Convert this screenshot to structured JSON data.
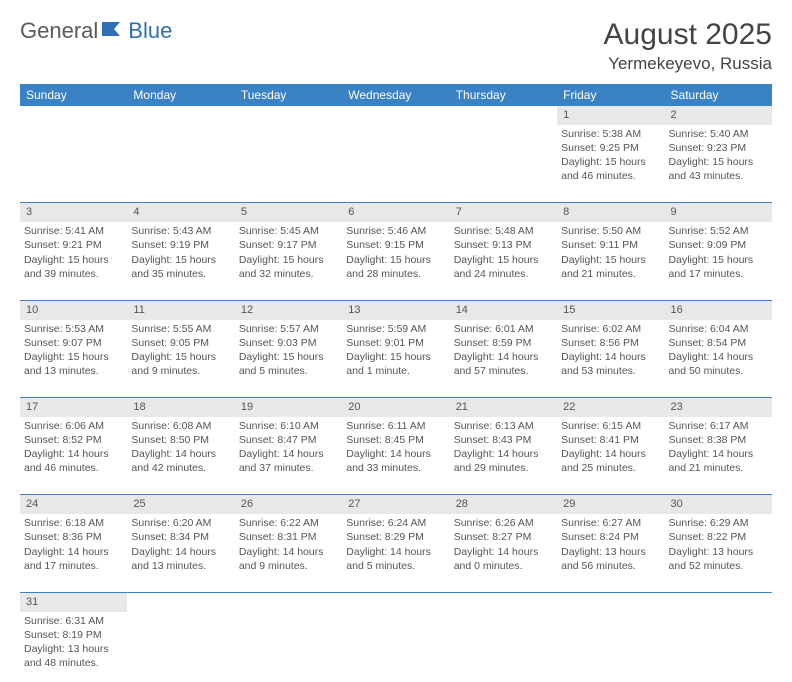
{
  "logo": {
    "text1": "General",
    "text2": "Blue"
  },
  "title": "August 2025",
  "location": "Yermekeyevo, Russia",
  "day_headers": [
    "Sunday",
    "Monday",
    "Tuesday",
    "Wednesday",
    "Thursday",
    "Friday",
    "Saturday"
  ],
  "colors": {
    "header_bg": "#3b82c4",
    "header_text": "#ffffff",
    "daynum_bg": "#e8e8e8",
    "border": "#3b82c4",
    "logo_gray": "#5a5a5a",
    "logo_blue": "#2f6fb3"
  },
  "weeks": [
    [
      null,
      null,
      null,
      null,
      null,
      {
        "n": "1",
        "sr": "Sunrise: 5:38 AM",
        "ss": "Sunset: 9:25 PM",
        "dl": "Daylight: 15 hours and 46 minutes."
      },
      {
        "n": "2",
        "sr": "Sunrise: 5:40 AM",
        "ss": "Sunset: 9:23 PM",
        "dl": "Daylight: 15 hours and 43 minutes."
      }
    ],
    [
      {
        "n": "3",
        "sr": "Sunrise: 5:41 AM",
        "ss": "Sunset: 9:21 PM",
        "dl": "Daylight: 15 hours and 39 minutes."
      },
      {
        "n": "4",
        "sr": "Sunrise: 5:43 AM",
        "ss": "Sunset: 9:19 PM",
        "dl": "Daylight: 15 hours and 35 minutes."
      },
      {
        "n": "5",
        "sr": "Sunrise: 5:45 AM",
        "ss": "Sunset: 9:17 PM",
        "dl": "Daylight: 15 hours and 32 minutes."
      },
      {
        "n": "6",
        "sr": "Sunrise: 5:46 AM",
        "ss": "Sunset: 9:15 PM",
        "dl": "Daylight: 15 hours and 28 minutes."
      },
      {
        "n": "7",
        "sr": "Sunrise: 5:48 AM",
        "ss": "Sunset: 9:13 PM",
        "dl": "Daylight: 15 hours and 24 minutes."
      },
      {
        "n": "8",
        "sr": "Sunrise: 5:50 AM",
        "ss": "Sunset: 9:11 PM",
        "dl": "Daylight: 15 hours and 21 minutes."
      },
      {
        "n": "9",
        "sr": "Sunrise: 5:52 AM",
        "ss": "Sunset: 9:09 PM",
        "dl": "Daylight: 15 hours and 17 minutes."
      }
    ],
    [
      {
        "n": "10",
        "sr": "Sunrise: 5:53 AM",
        "ss": "Sunset: 9:07 PM",
        "dl": "Daylight: 15 hours and 13 minutes."
      },
      {
        "n": "11",
        "sr": "Sunrise: 5:55 AM",
        "ss": "Sunset: 9:05 PM",
        "dl": "Daylight: 15 hours and 9 minutes."
      },
      {
        "n": "12",
        "sr": "Sunrise: 5:57 AM",
        "ss": "Sunset: 9:03 PM",
        "dl": "Daylight: 15 hours and 5 minutes."
      },
      {
        "n": "13",
        "sr": "Sunrise: 5:59 AM",
        "ss": "Sunset: 9:01 PM",
        "dl": "Daylight: 15 hours and 1 minute."
      },
      {
        "n": "14",
        "sr": "Sunrise: 6:01 AM",
        "ss": "Sunset: 8:59 PM",
        "dl": "Daylight: 14 hours and 57 minutes."
      },
      {
        "n": "15",
        "sr": "Sunrise: 6:02 AM",
        "ss": "Sunset: 8:56 PM",
        "dl": "Daylight: 14 hours and 53 minutes."
      },
      {
        "n": "16",
        "sr": "Sunrise: 6:04 AM",
        "ss": "Sunset: 8:54 PM",
        "dl": "Daylight: 14 hours and 50 minutes."
      }
    ],
    [
      {
        "n": "17",
        "sr": "Sunrise: 6:06 AM",
        "ss": "Sunset: 8:52 PM",
        "dl": "Daylight: 14 hours and 46 minutes."
      },
      {
        "n": "18",
        "sr": "Sunrise: 6:08 AM",
        "ss": "Sunset: 8:50 PM",
        "dl": "Daylight: 14 hours and 42 minutes."
      },
      {
        "n": "19",
        "sr": "Sunrise: 6:10 AM",
        "ss": "Sunset: 8:47 PM",
        "dl": "Daylight: 14 hours and 37 minutes."
      },
      {
        "n": "20",
        "sr": "Sunrise: 6:11 AM",
        "ss": "Sunset: 8:45 PM",
        "dl": "Daylight: 14 hours and 33 minutes."
      },
      {
        "n": "21",
        "sr": "Sunrise: 6:13 AM",
        "ss": "Sunset: 8:43 PM",
        "dl": "Daylight: 14 hours and 29 minutes."
      },
      {
        "n": "22",
        "sr": "Sunrise: 6:15 AM",
        "ss": "Sunset: 8:41 PM",
        "dl": "Daylight: 14 hours and 25 minutes."
      },
      {
        "n": "23",
        "sr": "Sunrise: 6:17 AM",
        "ss": "Sunset: 8:38 PM",
        "dl": "Daylight: 14 hours and 21 minutes."
      }
    ],
    [
      {
        "n": "24",
        "sr": "Sunrise: 6:18 AM",
        "ss": "Sunset: 8:36 PM",
        "dl": "Daylight: 14 hours and 17 minutes."
      },
      {
        "n": "25",
        "sr": "Sunrise: 6:20 AM",
        "ss": "Sunset: 8:34 PM",
        "dl": "Daylight: 14 hours and 13 minutes."
      },
      {
        "n": "26",
        "sr": "Sunrise: 6:22 AM",
        "ss": "Sunset: 8:31 PM",
        "dl": "Daylight: 14 hours and 9 minutes."
      },
      {
        "n": "27",
        "sr": "Sunrise: 6:24 AM",
        "ss": "Sunset: 8:29 PM",
        "dl": "Daylight: 14 hours and 5 minutes."
      },
      {
        "n": "28",
        "sr": "Sunrise: 6:26 AM",
        "ss": "Sunset: 8:27 PM",
        "dl": "Daylight: 14 hours and 0 minutes."
      },
      {
        "n": "29",
        "sr": "Sunrise: 6:27 AM",
        "ss": "Sunset: 8:24 PM",
        "dl": "Daylight: 13 hours and 56 minutes."
      },
      {
        "n": "30",
        "sr": "Sunrise: 6:29 AM",
        "ss": "Sunset: 8:22 PM",
        "dl": "Daylight: 13 hours and 52 minutes."
      }
    ],
    [
      {
        "n": "31",
        "sr": "Sunrise: 6:31 AM",
        "ss": "Sunset: 8:19 PM",
        "dl": "Daylight: 13 hours and 48 minutes."
      },
      null,
      null,
      null,
      null,
      null,
      null
    ]
  ]
}
